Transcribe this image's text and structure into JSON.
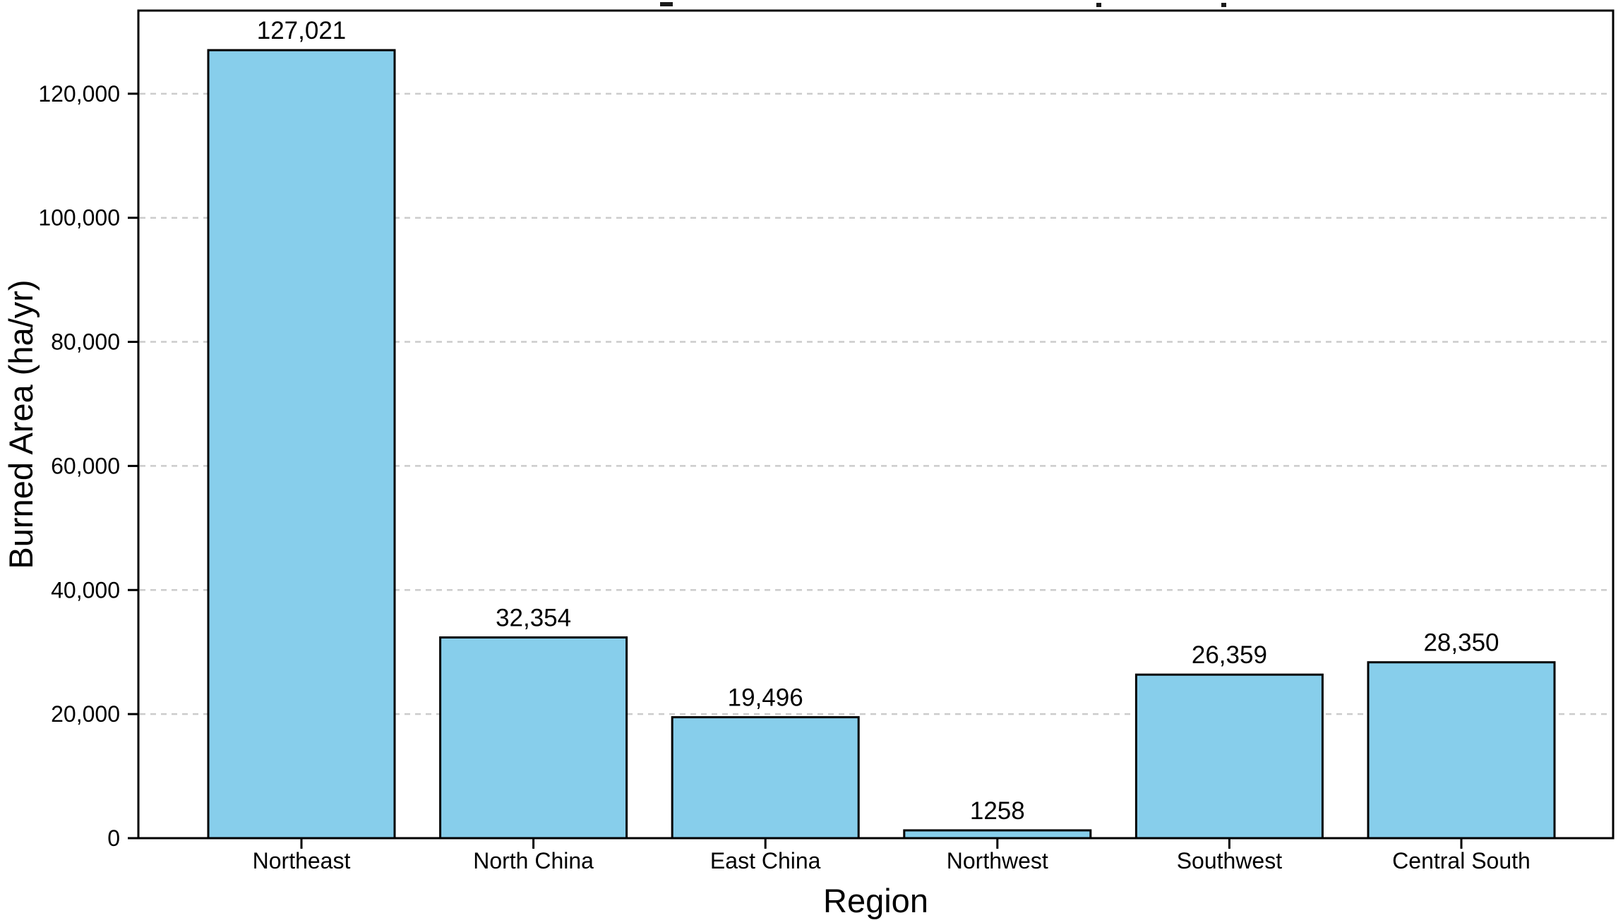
{
  "chart_data": {
    "type": "bar",
    "title": "",
    "xlabel": "Region",
    "ylabel": "Burned Area (ha/yr)",
    "categories": [
      "Northeast",
      "North China",
      "East China",
      "Northwest",
      "Southwest",
      "Central South"
    ],
    "values": [
      127021,
      32354,
      19496,
      1258,
      26359,
      28350
    ],
    "value_labels": [
      "127,021",
      "32,354",
      "19,496",
      "1258",
      "26,359",
      "28,350"
    ],
    "ylim": [
      0,
      133400
    ],
    "yticks": [
      0,
      20000,
      40000,
      60000,
      80000,
      100000,
      120000
    ],
    "ytick_labels": [
      "0",
      "20,000",
      "40,000",
      "60,000",
      "80,000",
      "100,000",
      "120,000"
    ],
    "grid": "horizontal-dashed",
    "legend": "none",
    "colors": {
      "bar_fill": "#87CEEB",
      "bar_edge": "#000000",
      "grid_line": "#cccccc",
      "axis_line": "#000000",
      "text": "#000000",
      "background": "#ffffff"
    }
  }
}
